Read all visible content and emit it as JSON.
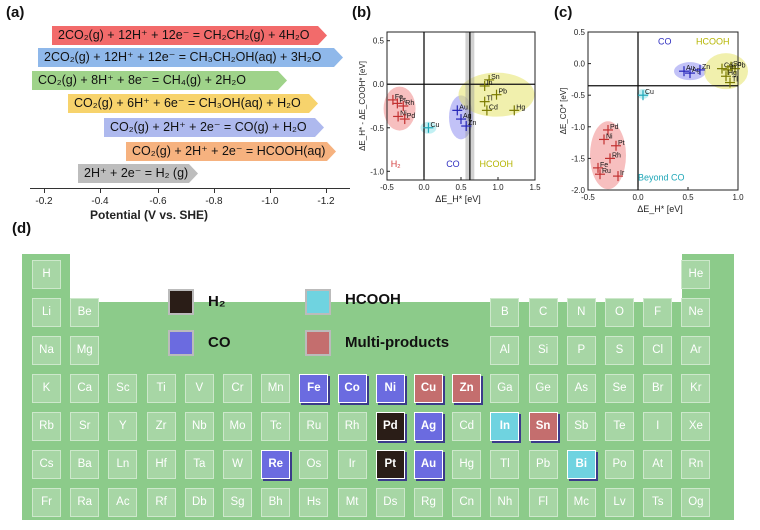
{
  "panels": {
    "a": "(a)",
    "b": "(b)",
    "c": "(c)",
    "d": "(d)"
  },
  "reactions": [
    {
      "text": "2CO₂(g) + 12H⁺ + 12e⁻ = CH₂CH₂(g) + 4H₂O",
      "color": "#f26b6b"
    },
    {
      "text": "2CO₂(g) + 12H⁺ + 12e⁻ = CH₃CH₂OH(aq) + 3H₂O",
      "color": "#8fb8ea"
    },
    {
      "text": "CO₂(g) + 8H⁺ + 8e⁻ = CH₄(g) + 2H₂O",
      "color": "#9fd38a"
    },
    {
      "text": "CO₂(g) + 6H⁺ + 6e⁻ = CH₃OH(aq) + H₂O",
      "color": "#f7d36c"
    },
    {
      "text": "CO₂(g) + 2H⁺ + 2e⁻ = CO(g) + H₂O",
      "color": "#aeb9ee"
    },
    {
      "text": "CO₂(g) + 2H⁺ + 2e⁻ = HCOOH(aq)",
      "color": "#f6b27f"
    },
    {
      "text": "2H⁺ + 2e⁻ = H₂ (g)",
      "color": "#bdbdbd"
    }
  ],
  "potential_axis": {
    "label": "Potential (V vs. SHE)",
    "ticks": [
      "-0.2",
      "-0.4",
      "-0.6",
      "-0.8",
      "-1.0",
      "-1.2"
    ]
  },
  "chart_data": [
    {
      "type": "scatter",
      "panel": "(b)",
      "xlabel": "ΔE_H* [eV]",
      "ylabel": "ΔE_H* - ΔE_COOH* [eV]",
      "xlim": [
        -0.5,
        1.5
      ],
      "ylim": [
        -1.1,
        0.6
      ],
      "xticks": [
        "-0.5",
        "0.0",
        "0.5",
        "1.0",
        "1.5"
      ],
      "yticks": [
        "0.5",
        "0.0",
        "-0.5",
        "-1.0"
      ],
      "regions": [
        "H₂",
        "CO",
        "HCOOH"
      ],
      "points": [
        {
          "label": "Fe",
          "x": -0.42,
          "y": -0.18,
          "group": "H2"
        },
        {
          "label": "Pt",
          "x": -0.36,
          "y": -0.22,
          "group": "H2"
        },
        {
          "label": "Rh",
          "x": -0.28,
          "y": -0.25,
          "group": "H2"
        },
        {
          "label": "Ni",
          "x": -0.35,
          "y": -0.37,
          "group": "H2"
        },
        {
          "label": "Pd",
          "x": -0.26,
          "y": -0.4,
          "group": "H2"
        },
        {
          "label": "Cu",
          "x": 0.06,
          "y": -0.5,
          "group": "Cu"
        },
        {
          "label": "Au",
          "x": 0.45,
          "y": -0.3,
          "group": "CO"
        },
        {
          "label": "Ag",
          "x": 0.5,
          "y": -0.4,
          "group": "CO"
        },
        {
          "label": "Zn",
          "x": 0.57,
          "y": -0.48,
          "group": "CO"
        },
        {
          "label": "Sn",
          "x": 0.88,
          "y": 0.05,
          "group": "HCOOH"
        },
        {
          "label": "In",
          "x": 0.82,
          "y": -0.02,
          "group": "HCOOH"
        },
        {
          "label": "Pb",
          "x": 0.98,
          "y": -0.12,
          "group": "HCOOH"
        },
        {
          "label": "Tl",
          "x": 0.82,
          "y": -0.2,
          "group": "HCOOH"
        },
        {
          "label": "Cd",
          "x": 0.85,
          "y": -0.3,
          "group": "HCOOH"
        },
        {
          "label": "Hg",
          "x": 1.22,
          "y": -0.3,
          "group": "HCOOH"
        }
      ]
    },
    {
      "type": "scatter",
      "panel": "(c)",
      "xlabel": "ΔE_H* [eV]",
      "ylabel": "ΔE_CO* [eV]",
      "xlim": [
        -0.5,
        1.0
      ],
      "ylim": [
        -2.0,
        0.5
      ],
      "xticks": [
        "-0.5",
        "0.0",
        "0.5",
        "1.0"
      ],
      "yticks": [
        "0.5",
        "0.0",
        "-0.5",
        "-1.0",
        "-1.5",
        "-2.0"
      ],
      "regions": [
        "CO",
        "HCOOH",
        "Beyond CO"
      ],
      "points": [
        {
          "label": "Ag",
          "x": 0.52,
          "y": -0.15,
          "group": "CO"
        },
        {
          "label": "Au",
          "x": 0.46,
          "y": -0.12,
          "group": "CO"
        },
        {
          "label": "Zn",
          "x": 0.62,
          "y": -0.1,
          "group": "CO"
        },
        {
          "label": "Cd",
          "x": 0.84,
          "y": -0.08,
          "group": "HCOOH"
        },
        {
          "label": "Sn",
          "x": 0.93,
          "y": -0.05,
          "group": "HCOOH"
        },
        {
          "label": "Pb",
          "x": 0.97,
          "y": -0.08,
          "group": "HCOOH"
        },
        {
          "label": "In",
          "x": 0.9,
          "y": -0.1,
          "group": "HCOOH"
        },
        {
          "label": "Hg",
          "x": 0.88,
          "y": -0.2,
          "group": "HCOOH"
        },
        {
          "label": "Tl",
          "x": 0.92,
          "y": -0.3,
          "group": "HCOOH"
        },
        {
          "label": "Cu",
          "x": 0.05,
          "y": -0.5,
          "group": "Cu"
        },
        {
          "label": "Pd",
          "x": -0.3,
          "y": -1.05,
          "group": "beyond"
        },
        {
          "label": "Ni",
          "x": -0.34,
          "y": -1.2,
          "group": "beyond"
        },
        {
          "label": "Pt",
          "x": -0.22,
          "y": -1.3,
          "group": "beyond"
        },
        {
          "label": "Rh",
          "x": -0.28,
          "y": -1.5,
          "group": "beyond"
        },
        {
          "label": "Fe",
          "x": -0.4,
          "y": -1.65,
          "group": "beyond"
        },
        {
          "label": "Ru",
          "x": -0.38,
          "y": -1.75,
          "group": "beyond"
        },
        {
          "label": "Ir",
          "x": -0.2,
          "y": -1.78,
          "group": "beyond"
        }
      ]
    }
  ],
  "legend": [
    {
      "label": "H₂",
      "color": "#2a1d17"
    },
    {
      "label": "HCOOH",
      "color": "#6fd3e0"
    },
    {
      "label": "CO",
      "color": "#6b6be0"
    },
    {
      "label": "Multi-products",
      "color": "#c46e6e"
    }
  ],
  "periodic_table": {
    "rows": [
      [
        "H",
        "",
        "",
        "",
        "",
        "",
        "",
        "",
        "",
        "",
        "",
        "",
        "",
        "",
        "",
        "",
        "",
        "He"
      ],
      [
        "Li",
        "Be",
        "",
        "",
        "",
        "",
        "",
        "",
        "",
        "",
        "",
        "",
        "B",
        "C",
        "N",
        "O",
        "F",
        "Ne"
      ],
      [
        "Na",
        "Mg",
        "",
        "",
        "",
        "",
        "",
        "",
        "",
        "",
        "",
        "",
        "Al",
        "Si",
        "P",
        "S",
        "Cl",
        "Ar"
      ],
      [
        "K",
        "Ca",
        "Sc",
        "Ti",
        "V",
        "Cr",
        "Mn",
        "Fe",
        "Co",
        "Ni",
        "Cu",
        "Zn",
        "Ga",
        "Ge",
        "As",
        "Se",
        "Br",
        "Kr"
      ],
      [
        "Rb",
        "Sr",
        "Y",
        "Zr",
        "Nb",
        "Mo",
        "Tc",
        "Ru",
        "Rh",
        "Pd",
        "Ag",
        "Cd",
        "In",
        "Sn",
        "Sb",
        "Te",
        "I",
        "Xe"
      ],
      [
        "Cs",
        "Ba",
        "Ln",
        "Hf",
        "Ta",
        "W",
        "Re",
        "Os",
        "Ir",
        "Pt",
        "Au",
        "Hg",
        "Tl",
        "Pb",
        "Bi",
        "Po",
        "At",
        "Rn"
      ],
      [
        "Fr",
        "Ra",
        "Ac",
        "Rf",
        "Db",
        "Sg",
        "Bh",
        "Hs",
        "Mt",
        "Ds",
        "Rg",
        "Cn",
        "Nh",
        "Fl",
        "Mc",
        "Lv",
        "Ts",
        "Og"
      ]
    ],
    "highlights": {
      "Fe": "CO",
      "Co": "CO",
      "Ni": "CO",
      "Ag": "CO",
      "Au": "CO",
      "Re": "CO",
      "Cu": "Multi",
      "Zn": "Multi",
      "Sn": "Multi",
      "Pd": "H2",
      "Pt": "H2",
      "In": "HCOOH",
      "Bi": "HCOOH"
    },
    "highlight_colors": {
      "CO": "#6b6be0",
      "Multi": "#c46e6e",
      "H2": "#2a1d17",
      "HCOOH": "#6fd3e0"
    }
  }
}
